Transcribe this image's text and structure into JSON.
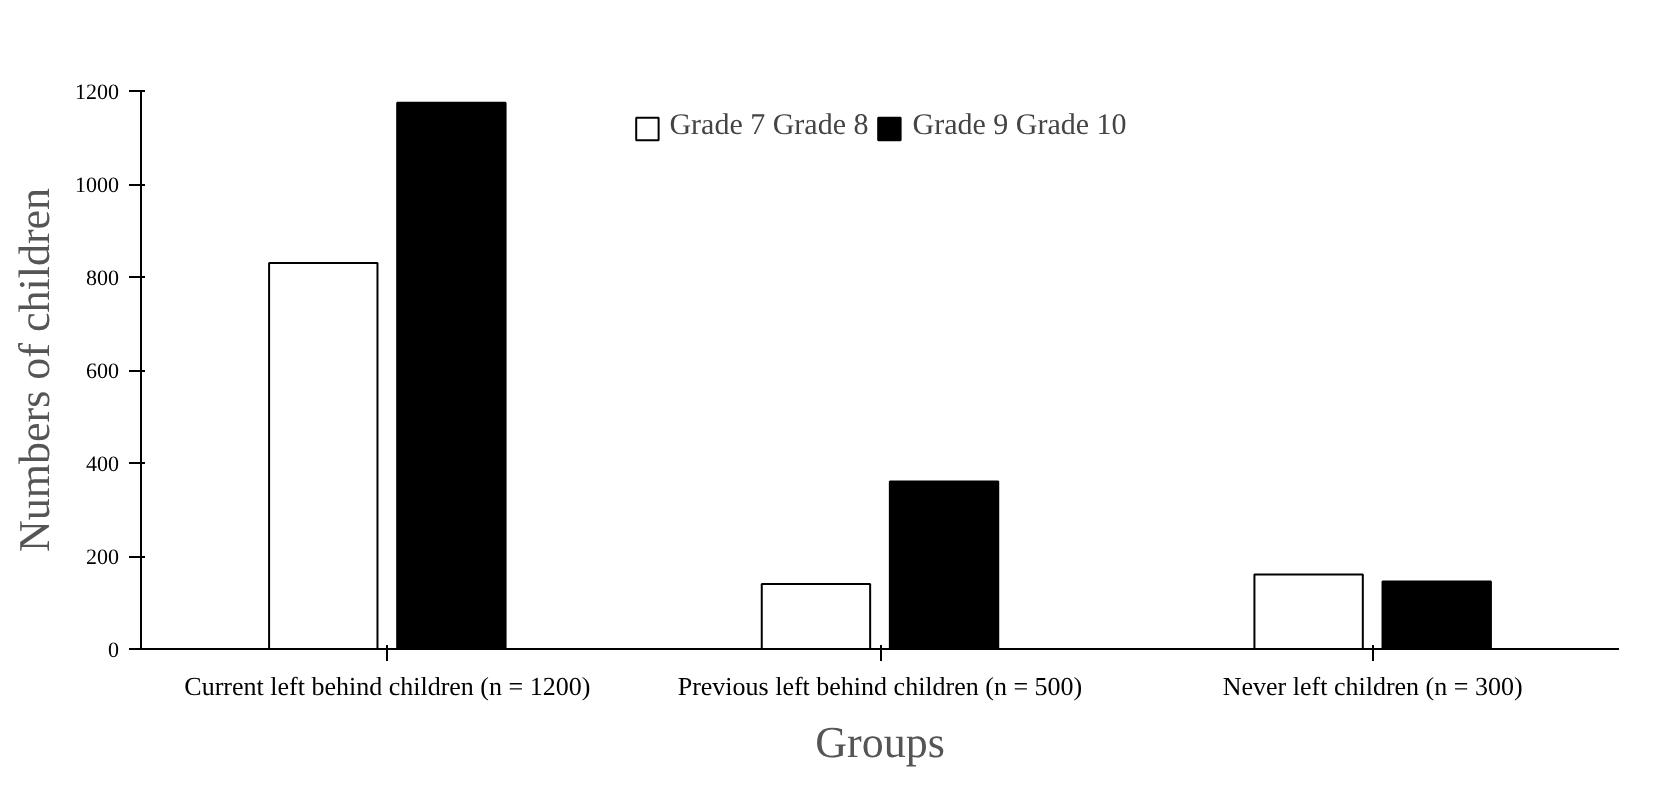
{
  "chart_data": {
    "type": "bar",
    "xlabel": "Groups",
    "ylabel": "Numbers of children",
    "categories": [
      "Current left behind children (n = 1200)",
      "Previous left behind children (n = 500)",
      "Never left children (n = 300)"
    ],
    "series": [
      {
        "name": "Grade 7 Grade 8",
        "color": "#ffffff",
        "values": [
          830,
          140,
          160
        ]
      },
      {
        "name": "Grade 9 Grade 10",
        "color": "#000000",
        "values": [
          1175,
          360,
          145
        ]
      }
    ],
    "ylim": [
      0,
      1200
    ],
    "yticks": [
      0,
      200,
      400,
      600,
      800,
      1000,
      1200
    ],
    "grid": false,
    "legend": "top"
  }
}
